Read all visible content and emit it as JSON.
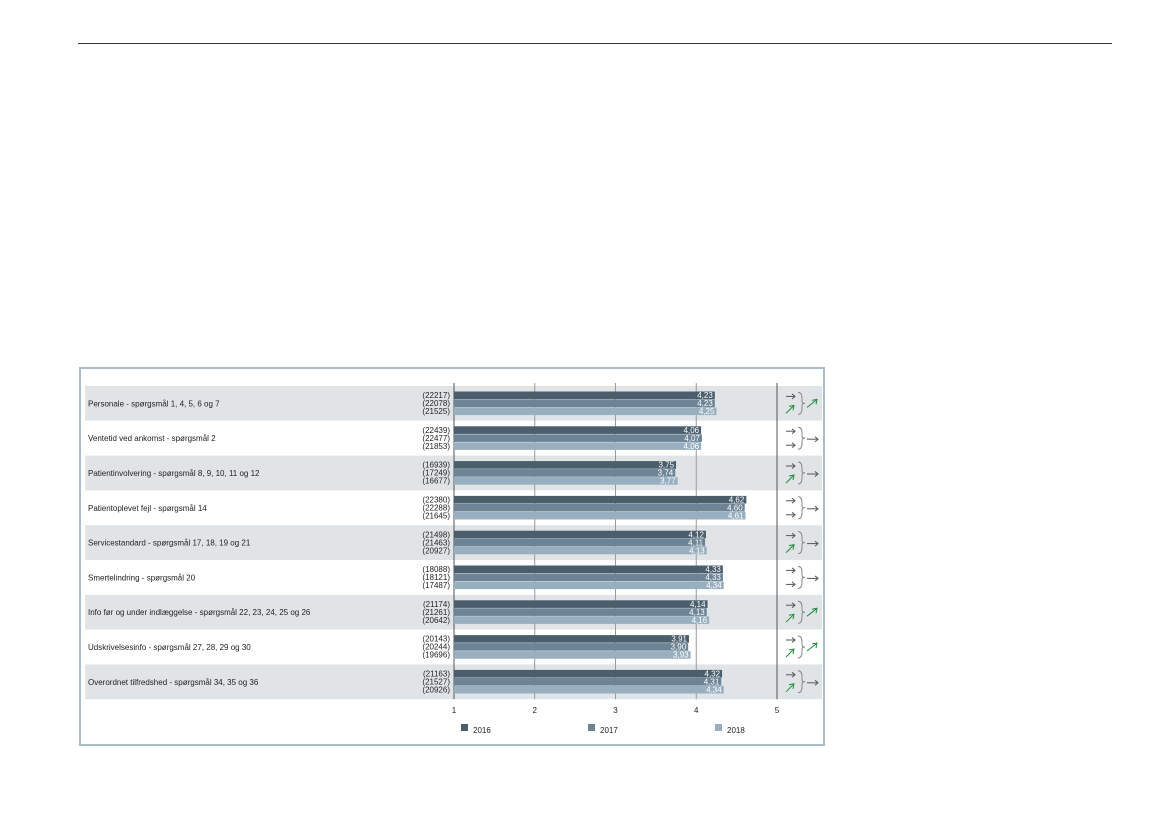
{
  "chart_data": {
    "type": "bar",
    "orientation": "horizontal",
    "xlim": [
      1,
      5
    ],
    "x_ticks": [
      "1",
      "2",
      "3",
      "4",
      "5"
    ],
    "grid": true,
    "legend_placement": "bottom",
    "colors": {
      "2016": "#4a5e6c",
      "2017": "#6c8495",
      "2018": "#98afbf"
    },
    "series": [
      {
        "name": "2016"
      },
      {
        "name": "2017"
      },
      {
        "name": "2018"
      }
    ],
    "categories": [
      {
        "label": "Personale - spørgsmål 1, 4, 5, 6 og 7",
        "n": [
          "(22217)",
          "(22078)",
          "(21525)"
        ],
        "values": [
          4.23,
          4.23,
          4.25
        ],
        "value_labels": [
          "4,23",
          "4,23",
          "4,25"
        ],
        "trend_icons": [
          "arrow-right",
          "arrow-up-green",
          "arrow-up-green"
        ]
      },
      {
        "label": "Ventetid ved ankomst - spørgsmål 2",
        "n": [
          "(22439)",
          "(22477)",
          "(21853)"
        ],
        "values": [
          4.06,
          4.07,
          4.06
        ],
        "value_labels": [
          "4,06",
          "4,07",
          "4,06"
        ],
        "trend_icons": [
          "arrow-right",
          "arrow-right",
          "arrow-right"
        ]
      },
      {
        "label": "Patientinvolvering - spørgsmål 8, 9, 10, 11 og 12",
        "n": [
          "(16939)",
          "(17249)",
          "(16677)"
        ],
        "values": [
          3.75,
          3.74,
          3.77
        ],
        "value_labels": [
          "3,75",
          "3,74",
          "3,77"
        ],
        "trend_icons": [
          "arrow-right",
          "arrow-up-green",
          "arrow-right"
        ]
      },
      {
        "label": "Patientoplevet fejl - spørgsmål 14",
        "n": [
          "(22380)",
          "(22288)",
          "(21645)"
        ],
        "values": [
          4.62,
          4.6,
          4.61
        ],
        "value_labels": [
          "4,62",
          "4,60",
          "4,61"
        ],
        "trend_icons": [
          "arrow-right",
          "arrow-right",
          "arrow-right"
        ]
      },
      {
        "label": "Servicestandard - spørgsmål 17, 18, 19 og 21",
        "n": [
          "(21498)",
          "(21463)",
          "(20927)"
        ],
        "values": [
          4.12,
          4.11,
          4.13
        ],
        "value_labels": [
          "4,12",
          "4,11",
          "4,13"
        ],
        "trend_icons": [
          "arrow-right",
          "arrow-up-green",
          "arrow-right"
        ]
      },
      {
        "label": "Smertelindring - spørgsmål 20",
        "n": [
          "(18088)",
          "(18121)",
          "(17487)"
        ],
        "values": [
          4.33,
          4.33,
          4.34
        ],
        "value_labels": [
          "4,33",
          "4,33",
          "4,34"
        ],
        "trend_icons": [
          "arrow-right",
          "arrow-right",
          "arrow-right"
        ]
      },
      {
        "label": "Info før og under indlæggelse - spørgsmål 22, 23, 24, 25 og 26",
        "n": [
          "(21174)",
          "(21261)",
          "(20642)"
        ],
        "values": [
          4.14,
          4.13,
          4.16
        ],
        "value_labels": [
          "4,14",
          "4,13",
          "4,16"
        ],
        "trend_icons": [
          "arrow-right",
          "arrow-up-green",
          "arrow-up-green"
        ]
      },
      {
        "label": "Udskrivelsesinfo - spørgsmål 27, 28, 29 og 30",
        "n": [
          "(20143)",
          "(20244)",
          "(19696)"
        ],
        "values": [
          3.91,
          3.9,
          3.93
        ],
        "value_labels": [
          "3,91",
          "3,90",
          "3,93"
        ],
        "trend_icons": [
          "arrow-right",
          "arrow-up-green",
          "arrow-up-green"
        ]
      },
      {
        "label": "Overordnet tilfredshed - spørgsmål 34, 35 og 36",
        "n": [
          "(21163)",
          "(21527)",
          "(20926)"
        ],
        "values": [
          4.32,
          4.31,
          4.34
        ],
        "value_labels": [
          "4,32",
          "4,31",
          "4,34"
        ],
        "trend_icons": [
          "arrow-right",
          "arrow-up-green",
          "arrow-right"
        ]
      }
    ]
  }
}
